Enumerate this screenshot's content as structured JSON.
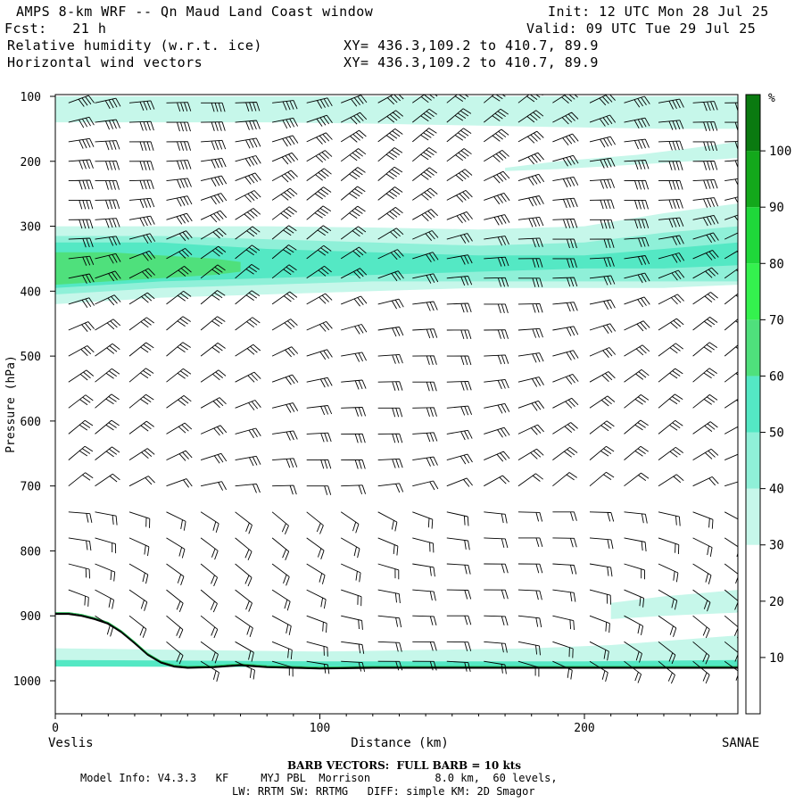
{
  "header": {
    "title": "AMPS 8-km WRF -- Qn Maud Land Coast window",
    "init": "Init: 12 UTC Mon 28 Jul 25",
    "fcst": "Fcst:   21 h",
    "valid": "Valid: 09 UTC Tue 29 Jul 25",
    "field1": "Relative humidity (w.r.t. ice)",
    "field2": "Horizontal wind vectors",
    "xy1": "XY= 436.3,109.2 to 410.7, 89.9",
    "xy2": "XY= 436.3,109.2 to 410.7, 89.9"
  },
  "footer": {
    "barb": "BARB VECTORS:  FULL BARB = 10 kts",
    "model1": "Model Info: V4.3.3   KF     MYJ PBL  Morrison          8.0 km,  60 levels,",
    "model2": "LW: RRTM SW: RRTMG   DIFF: simple KM: 2D Smagor"
  },
  "chart_data": {
    "type": "cross-section",
    "title": "Relative humidity (w.r.t. ice) / Horizontal wind vectors",
    "xlabel": "Distance (km)",
    "ylabel": "Pressure (hPa)",
    "xlim": [
      0,
      258
    ],
    "ylim": [
      1050,
      100
    ],
    "x_ticks": [
      0,
      100,
      200
    ],
    "y_ticks": [
      100,
      200,
      300,
      400,
      500,
      600,
      700,
      800,
      900,
      1000
    ],
    "x_end_labels": {
      "left": "Veslis",
      "right": "SANAE"
    },
    "colorbar": {
      "unit": "%",
      "tick_labels": [
        "10",
        "20",
        "30",
        "40",
        "50",
        "60",
        "70",
        "80",
        "90",
        "100"
      ],
      "levels": [
        0,
        10,
        20,
        30,
        40,
        50,
        60,
        70,
        80,
        90,
        100,
        110
      ],
      "colors": [
        "#ffffff",
        "#ffffff",
        "#ffffff",
        "#c6f7ea",
        "#8ff0d8",
        "#54e8c4",
        "#4fe07c",
        "#34f24e",
        "#1fd83a",
        "#13a81b",
        "#0a7a10",
        "#3d6b14"
      ]
    },
    "terrain": [
      [
        0,
        897
      ],
      [
        5,
        897
      ],
      [
        10,
        900
      ],
      [
        15,
        905
      ],
      [
        20,
        912
      ],
      [
        25,
        925
      ],
      [
        30,
        942
      ],
      [
        35,
        960
      ],
      [
        40,
        972
      ],
      [
        45,
        978
      ],
      [
        50,
        980
      ],
      [
        60,
        979
      ],
      [
        70,
        976
      ],
      [
        80,
        979
      ],
      [
        90,
        980
      ],
      [
        100,
        981
      ],
      [
        120,
        980
      ],
      [
        150,
        980
      ],
      [
        180,
        980
      ],
      [
        200,
        980
      ],
      [
        220,
        980
      ],
      [
        240,
        980
      ],
      [
        258,
        980
      ]
    ],
    "humid_bands": [
      {
        "rh": 35,
        "x": [
          0,
          40,
          80,
          120,
          160,
          200,
          230,
          258
        ],
        "p_top": [
          100,
          100,
          100,
          100,
          100,
          100,
          100,
          100
        ],
        "p_bot": [
          140,
          140,
          140,
          142,
          145,
          148,
          150,
          150
        ]
      },
      {
        "rh": 35,
        "x": [
          170,
          190,
          220,
          240,
          258
        ],
        "p_top": [
          210,
          200,
          190,
          180,
          170
        ],
        "p_bot": [
          215,
          212,
          205,
          200,
          195
        ]
      },
      {
        "rh": 35,
        "x": [
          0,
          40,
          80,
          120,
          160,
          200,
          230,
          258
        ],
        "p_top": [
          300,
          300,
          300,
          302,
          305,
          300,
          280,
          265
        ],
        "p_bot": [
          420,
          410,
          405,
          400,
          395,
          395,
          395,
          390
        ]
      },
      {
        "rh": 45,
        "x": [
          0,
          40,
          80,
          120,
          160,
          200,
          230,
          258
        ],
        "p_top": [
          315,
          315,
          320,
          325,
          330,
          325,
          310,
          300
        ],
        "p_bot": [
          405,
          395,
          390,
          385,
          385,
          385,
          385,
          385
        ]
      },
      {
        "rh": 55,
        "x": [
          0,
          40,
          80,
          120,
          160,
          200,
          230,
          258
        ],
        "p_top": [
          325,
          325,
          335,
          340,
          345,
          345,
          335,
          325
        ],
        "p_bot": [
          395,
          385,
          380,
          375,
          370,
          365,
          365,
          360
        ]
      },
      {
        "rh": 65,
        "x": [
          0,
          20,
          40,
          60,
          70
        ],
        "p_top": [
          340,
          340,
          345,
          350,
          355
        ],
        "p_bot": [
          390,
          385,
          380,
          375,
          370
        ]
      },
      {
        "rh": 35,
        "x": [
          0,
          100,
          180,
          210,
          258
        ],
        "p_top": [
          950,
          955,
          950,
          945,
          930
        ],
        "p_bot": [
          975,
          978,
          978,
          978,
          978
        ]
      },
      {
        "rh": 55,
        "x": [
          0,
          100,
          200,
          258
        ],
        "p_top": [
          968,
          970,
          970,
          968
        ],
        "p_bot": [
          978,
          979,
          979,
          979
        ]
      },
      {
        "rh": 35,
        "x": [
          210,
          230,
          258
        ],
        "p_top": [
          880,
          870,
          860
        ],
        "p_bot": [
          905,
          900,
          895
        ]
      }
    ],
    "wind_columns_x": [
      5,
      15,
      28,
      42,
      55,
      68,
      82,
      95,
      108,
      122,
      135,
      148,
      162,
      175,
      188,
      202,
      215,
      228,
      241,
      253
    ],
    "wind_levels_p": [
      110,
      140,
      170,
      200,
      230,
      260,
      290,
      320,
      350,
      380,
      420,
      460,
      500,
      540,
      580,
      620,
      660,
      700,
      740,
      780,
      820,
      860,
      900,
      940,
      970
    ],
    "wind_speed_kts": {
      "upper": 40,
      "mid": 30,
      "low": 20
    }
  }
}
